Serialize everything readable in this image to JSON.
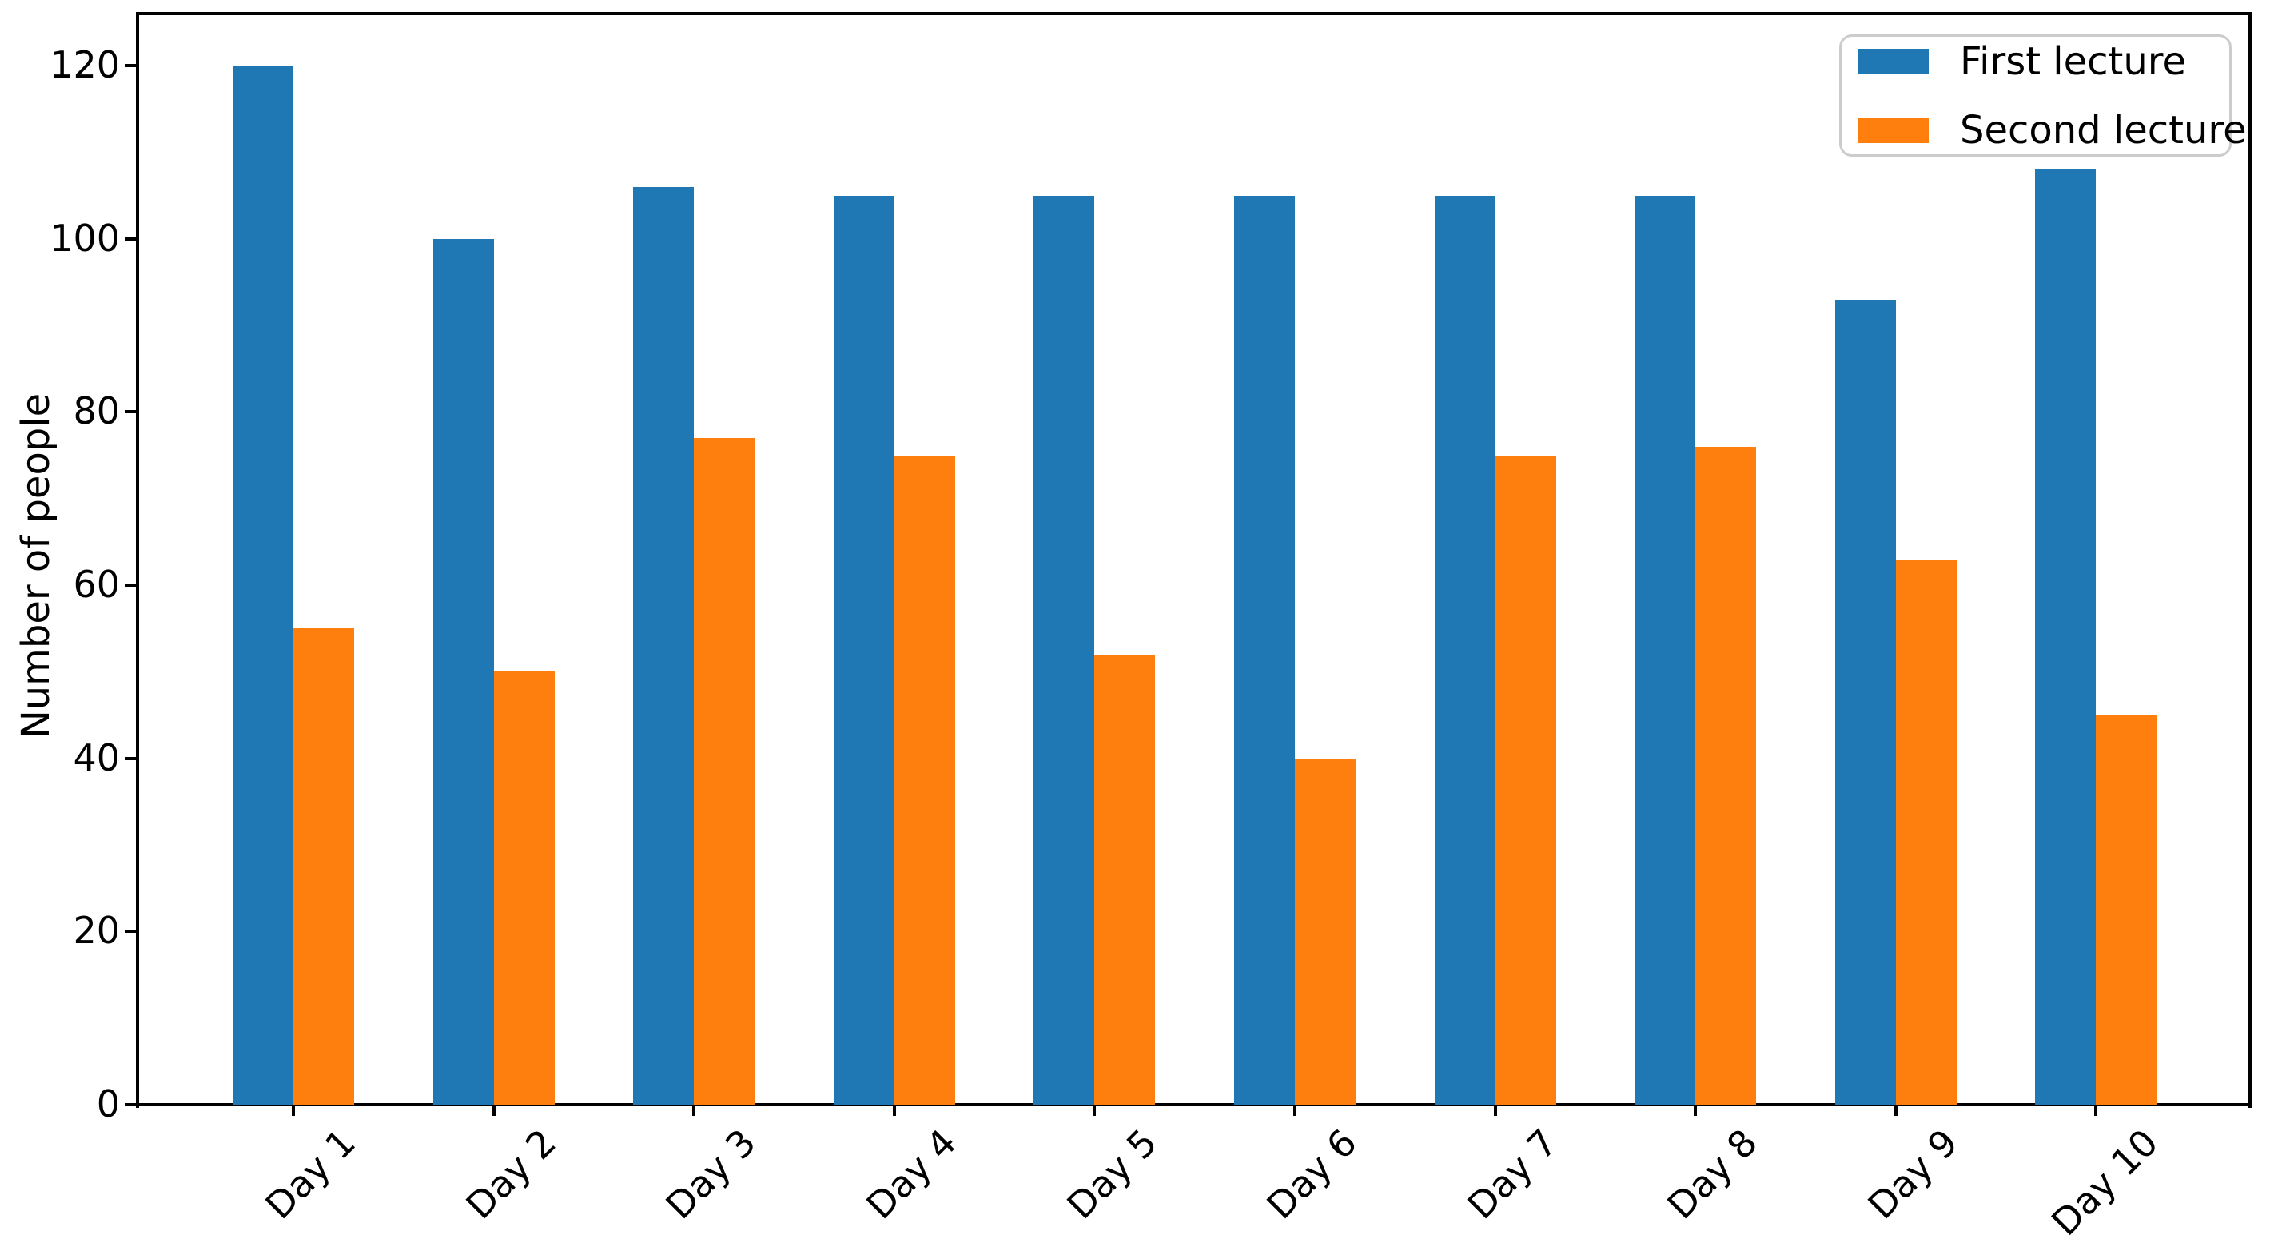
{
  "chart_data": {
    "type": "bar",
    "categories": [
      "Day 1",
      "Day 2",
      "Day 3",
      "Day 4",
      "Day 5",
      "Day 6",
      "Day 7",
      "Day 8",
      "Day 9",
      "Day 10"
    ],
    "series": [
      {
        "name": "First lecture",
        "color": "#1f77b4",
        "values": [
          120,
          100,
          106,
          105,
          105,
          105,
          105,
          105,
          93,
          108
        ]
      },
      {
        "name": "Second lecture",
        "color": "#ff7f0e",
        "values": [
          55,
          50,
          77,
          75,
          52,
          40,
          75,
          76,
          63,
          45
        ]
      }
    ],
    "title": "",
    "xlabel": "",
    "ylabel": "Number of people",
    "ylim": [
      0,
      126
    ],
    "y_ticks": [
      0,
      20,
      40,
      60,
      80,
      100,
      120
    ],
    "grid": false,
    "legend_position": "upper right",
    "background_color": "#ffffff",
    "axis_color": "#000000"
  }
}
